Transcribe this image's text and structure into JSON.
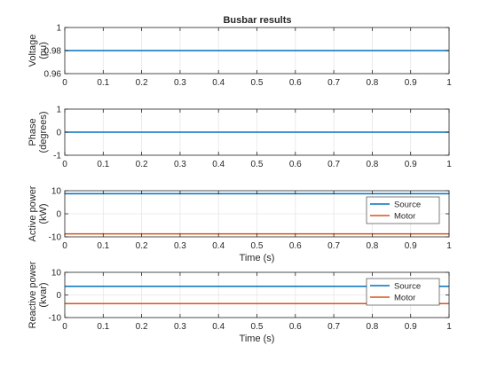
{
  "figure": {
    "title": "Busbar results"
  },
  "chart_data": [
    {
      "type": "line",
      "title": "Busbar results",
      "xlabel": "",
      "ylabel": [
        "Voltage",
        "(pu)"
      ],
      "xlim": [
        0,
        1
      ],
      "ylim": [
        0.96,
        1
      ],
      "xticks": [
        0,
        0.1,
        0.2,
        0.3,
        0.4,
        0.5,
        0.6,
        0.7,
        0.8,
        0.9,
        1
      ],
      "xtick_labels": [
        "0",
        "0.1",
        "0.2",
        "0.3",
        "0.4",
        "0.5",
        "0.6",
        "0.7",
        "0.8",
        "0.9",
        "1"
      ],
      "yticks": [
        0.96,
        0.98,
        1
      ],
      "ytick_labels": [
        "0.96",
        "0.98",
        "1"
      ],
      "grid": true,
      "legend": null,
      "series": [
        {
          "x": [
            0,
            1
          ],
          "values": [
            0.98,
            0.98
          ],
          "color": "#0072bd"
        }
      ]
    },
    {
      "type": "line",
      "title": "",
      "xlabel": "",
      "ylabel": [
        "Phase",
        "(degrees)"
      ],
      "xlim": [
        0,
        1
      ],
      "ylim": [
        -1,
        1
      ],
      "xticks": [
        0,
        0.1,
        0.2,
        0.3,
        0.4,
        0.5,
        0.6,
        0.7,
        0.8,
        0.9,
        1
      ],
      "xtick_labels": [
        "0",
        "0.1",
        "0.2",
        "0.3",
        "0.4",
        "0.5",
        "0.6",
        "0.7",
        "0.8",
        "0.9",
        "1"
      ],
      "yticks": [
        -1,
        0,
        1
      ],
      "ytick_labels": [
        "-1",
        "0",
        "1"
      ],
      "grid": true,
      "legend": null,
      "series": [
        {
          "x": [
            0,
            1
          ],
          "values": [
            0,
            0
          ],
          "color": "#0072bd"
        }
      ]
    },
    {
      "type": "line",
      "title": "",
      "xlabel": "Time (s)",
      "ylabel": [
        "Active power",
        "(kW)"
      ],
      "xlim": [
        0,
        1
      ],
      "ylim": [
        -10,
        10
      ],
      "xticks": [
        0,
        0.1,
        0.2,
        0.3,
        0.4,
        0.5,
        0.6,
        0.7,
        0.8,
        0.9,
        1
      ],
      "xtick_labels": [
        "0",
        "0.1",
        "0.2",
        "0.3",
        "0.4",
        "0.5",
        "0.6",
        "0.7",
        "0.8",
        "0.9",
        "1"
      ],
      "yticks": [
        -10,
        0,
        10
      ],
      "ytick_labels": [
        "-10",
        "0",
        "10"
      ],
      "grid": true,
      "legend": "bottom-right",
      "series": [
        {
          "name": "Source",
          "x": [
            0,
            1
          ],
          "values": [
            8.7,
            8.7
          ],
          "color": "#0072bd"
        },
        {
          "name": "Motor",
          "x": [
            0,
            1
          ],
          "values": [
            -8.7,
            -8.7
          ],
          "color": "#d95319"
        }
      ]
    },
    {
      "type": "line",
      "title": "",
      "xlabel": "Time (s)",
      "ylabel": [
        "Reactive power",
        "(kvar)"
      ],
      "xlim": [
        0,
        1
      ],
      "ylim": [
        -10,
        10
      ],
      "xticks": [
        0,
        0.1,
        0.2,
        0.3,
        0.4,
        0.5,
        0.6,
        0.7,
        0.8,
        0.9,
        1
      ],
      "xtick_labels": [
        "0",
        "0.1",
        "0.2",
        "0.3",
        "0.4",
        "0.5",
        "0.6",
        "0.7",
        "0.8",
        "0.9",
        "1"
      ],
      "yticks": [
        -10,
        0,
        10
      ],
      "ytick_labels": [
        "-10",
        "0",
        "10"
      ],
      "grid": true,
      "legend": "top-right",
      "series": [
        {
          "name": "Source",
          "x": [
            0,
            1
          ],
          "values": [
            3.8,
            3.8
          ],
          "color": "#0072bd"
        },
        {
          "name": "Motor",
          "x": [
            0,
            1
          ],
          "values": [
            -3.8,
            -3.8
          ],
          "color": "#d95319"
        }
      ]
    }
  ]
}
